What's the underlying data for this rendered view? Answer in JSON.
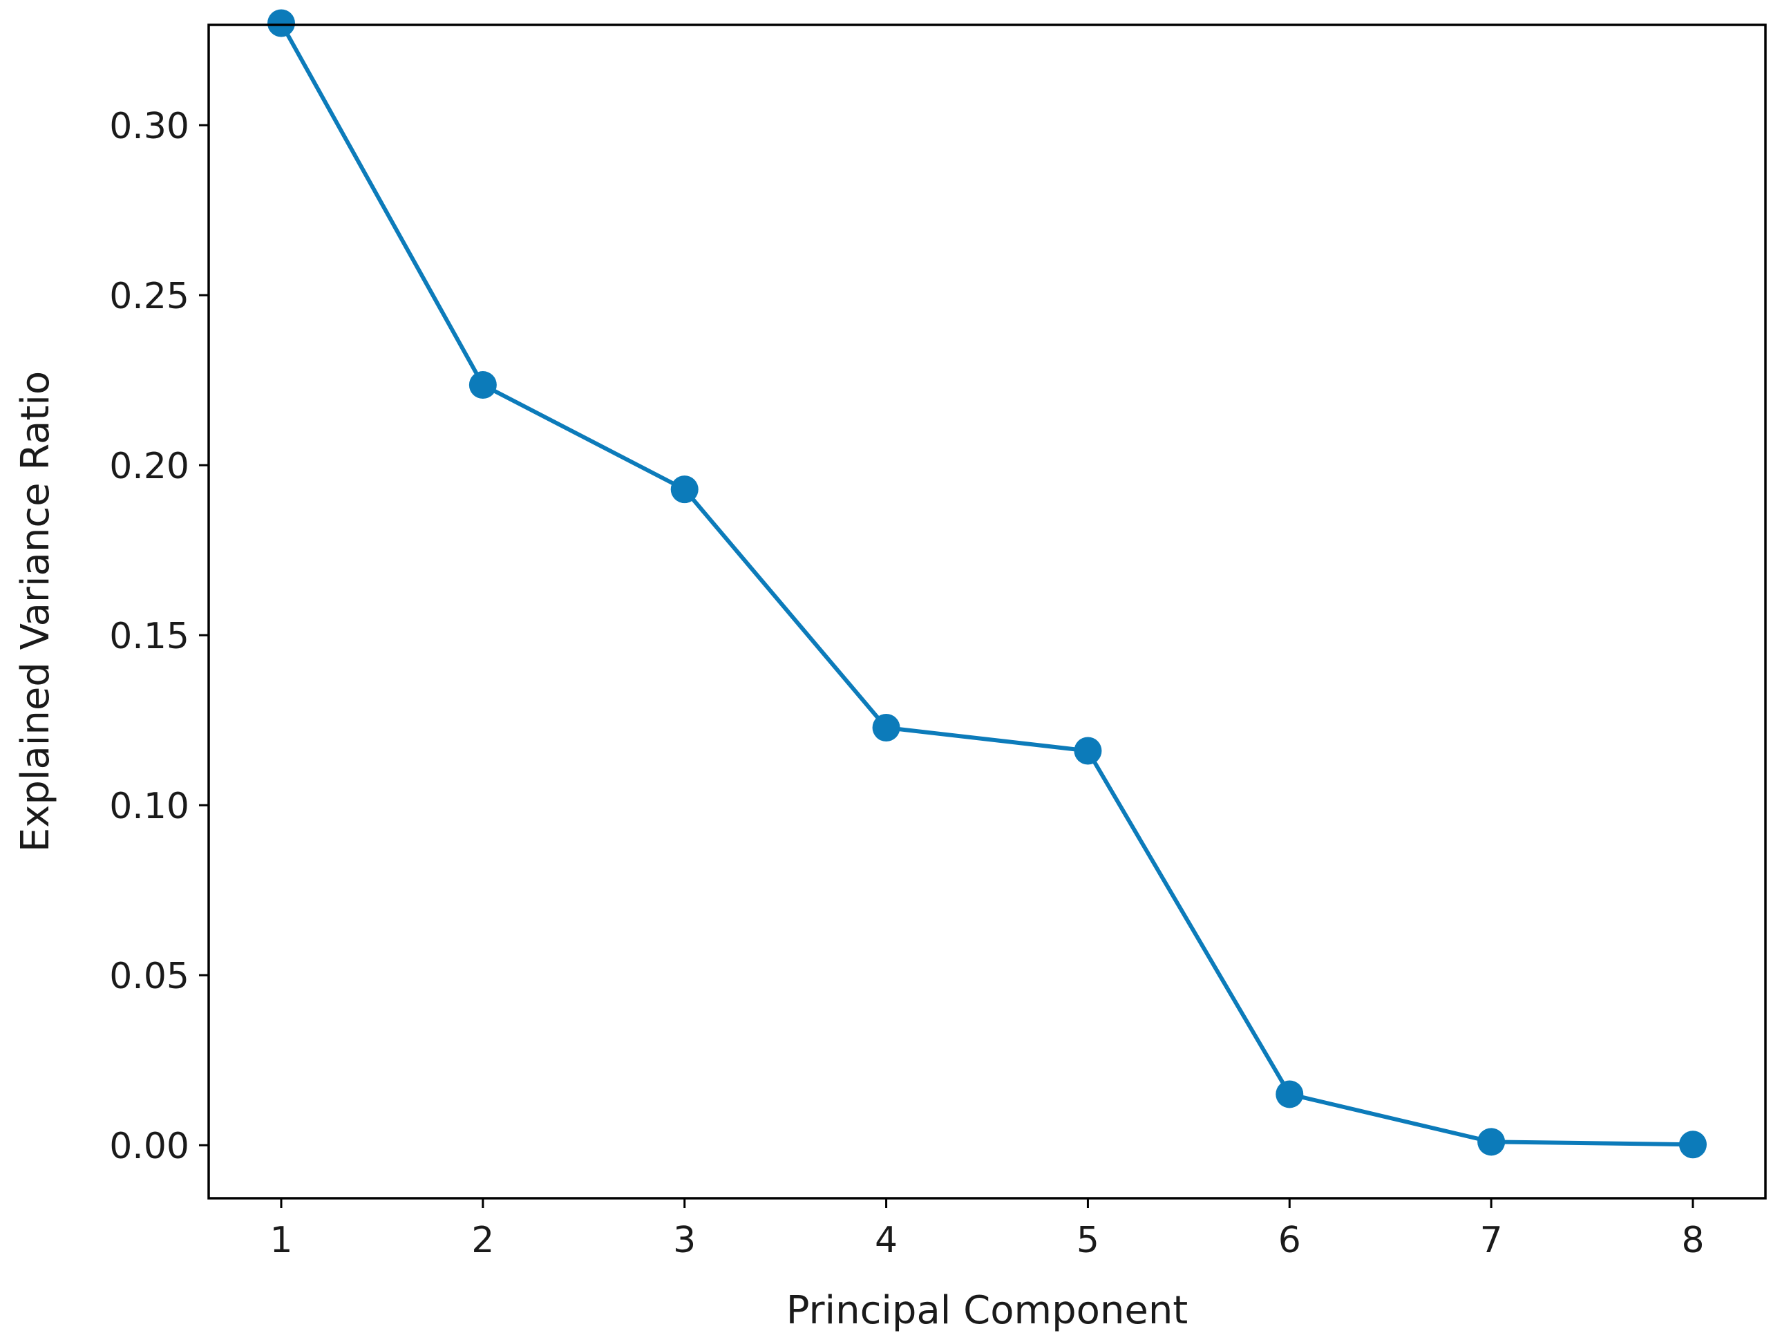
{
  "chart_data": {
    "type": "line",
    "title": "",
    "xlabel": "Principal Component",
    "ylabel": "Explained Variance Ratio",
    "x": [
      1,
      2,
      3,
      4,
      5,
      6,
      7,
      8
    ],
    "x_ticks": [
      "1",
      "2",
      "3",
      "4",
      "5",
      "6",
      "7",
      "8"
    ],
    "y_ticks": [
      "0.00",
      "0.05",
      "0.10",
      "0.15",
      "0.20",
      "0.25",
      "0.30"
    ],
    "ylim": [
      -0.0156,
      0.3295
    ],
    "series": [
      {
        "values": [
          0.33,
          0.2236,
          0.1929,
          0.1228,
          0.116,
          0.015,
          0.001,
          0.0002
        ],
        "color": "#0C7BBA",
        "marker": "circle"
      }
    ],
    "grid": false,
    "legend": "none"
  }
}
